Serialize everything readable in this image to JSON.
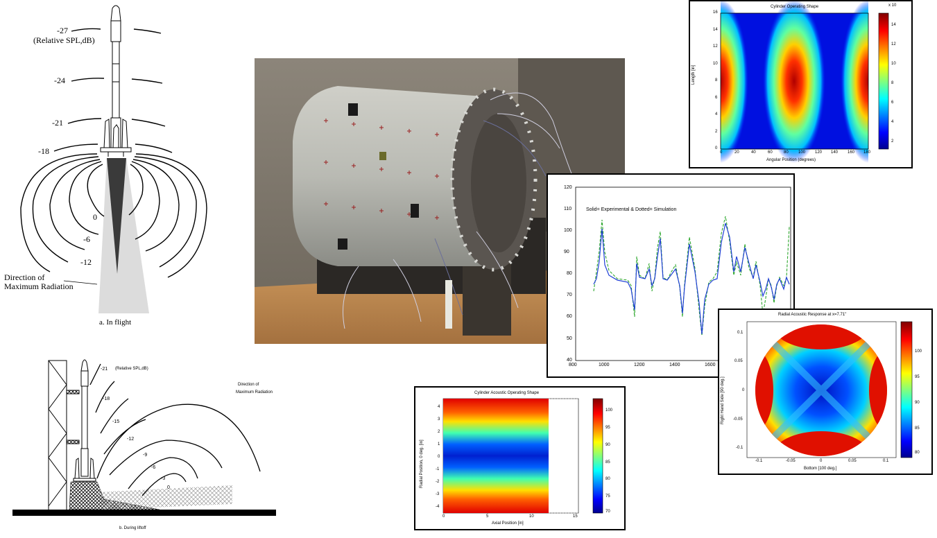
{
  "flight_diagram": {
    "levels": [
      "-27",
      "-24",
      "-21",
      "-18",
      "0",
      "-6",
      "-12"
    ],
    "unit_label": "(Relative SPL,dB)",
    "direction_line1": "Direction of",
    "direction_line2": "Maximum Radiation",
    "caption": "a. In flight"
  },
  "liftoff_diagram": {
    "levels": [
      "-21",
      "-18",
      "-15",
      "-12",
      "-9",
      "-6",
      "-3",
      "0"
    ],
    "unit_label": "(Relative SPL,dB)",
    "direction_line1": "Direction of",
    "direction_line2": "Maximum Radiation",
    "caption": "b. During liftoff"
  },
  "cylinder_operating_shape": {
    "title": "Cylinder Operating Shape",
    "xlabel": "Angular Position (degrees)",
    "ylabel": "Length [in]",
    "x_ticks": [
      "0",
      "20",
      "40",
      "60",
      "80",
      "100",
      "120",
      "140",
      "160",
      "180"
    ],
    "y_ticks": [
      "0",
      "2",
      "4",
      "6",
      "8",
      "10",
      "12",
      "14",
      "16"
    ],
    "colorbar_ticks": [
      "2",
      "4",
      "6",
      "8",
      "10",
      "12",
      "14"
    ],
    "colorbar_exponent": "x 10"
  },
  "frf_plot": {
    "legend_text": "Solid= Experimental  &  Dotted= Simulation",
    "x_ticks": [
      "800",
      "1000",
      "1200",
      "1400",
      "1600",
      "1800"
    ],
    "y_ticks": [
      "40",
      "50",
      "60",
      "70",
      "80",
      "90",
      "100",
      "110",
      "120"
    ],
    "colors": {
      "experimental": "#1f3fd6",
      "simulation": "#2fa82f"
    }
  },
  "radial_response": {
    "title": "Radial Acoustic Response at x=7.71\"",
    "xlabel": "Bottom [100 deg.]",
    "ylabel": "Right Hand Side [90 deg.]",
    "x_ticks": [
      "-0.1",
      "-0.05",
      "0",
      "0.05",
      "0.1"
    ],
    "y_ticks": [
      "0.1",
      "0.05",
      "0",
      "-0.05",
      "-0.1"
    ],
    "colorbar_ticks": [
      "100",
      "95",
      "90",
      "85",
      "80"
    ]
  },
  "acoustic_operating_shape": {
    "title": "Cylinder Acoustic Operating Shape",
    "xlabel": "Axial Position [in]",
    "ylabel": "Radial Position, 0 deg. [in]",
    "x_ticks": [
      "0",
      "5",
      "10",
      "15"
    ],
    "y_ticks": [
      "4",
      "3",
      "2",
      "1",
      "0",
      "-1",
      "-2",
      "-3",
      "-4"
    ],
    "colorbar_ticks": [
      "100",
      "95",
      "90",
      "85",
      "80",
      "75",
      "70"
    ]
  }
}
